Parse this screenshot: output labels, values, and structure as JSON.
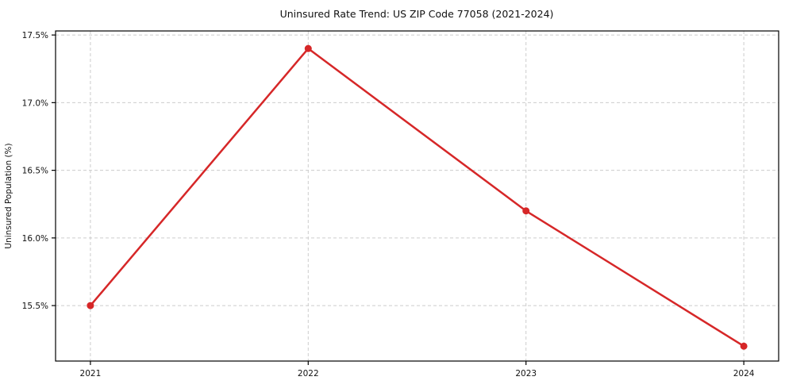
{
  "figure": {
    "background": "#ffffff"
  },
  "chart_data": {
    "type": "line",
    "title": "Uninsured Rate Trend: US ZIP Code 77058 (2021-2024)",
    "xlabel": "",
    "ylabel": "Uninsured Population (%)",
    "x": [
      2021,
      2022,
      2023,
      2024
    ],
    "values": [
      15.5,
      17.4,
      16.2,
      15.2
    ],
    "xtick_labels": [
      "2021",
      "2022",
      "2023",
      "2024"
    ],
    "ytick_values": [
      15.5,
      16.0,
      16.5,
      17.0,
      17.5
    ],
    "ytick_labels": [
      "15.5%",
      "16.0%",
      "16.5%",
      "17.0%",
      "17.5%"
    ],
    "xlim": [
      2020.84,
      2024.16
    ],
    "ylim": [
      15.09,
      17.53
    ],
    "grid": true,
    "grid_style": "dashed",
    "legend": "none",
    "line_color": "#d62728",
    "marker": "circle",
    "grid_color": "#cccccc",
    "spine_color": "#000000",
    "tick_color": "#000000",
    "text_color": "#111111",
    "background": "#ffffff"
  }
}
